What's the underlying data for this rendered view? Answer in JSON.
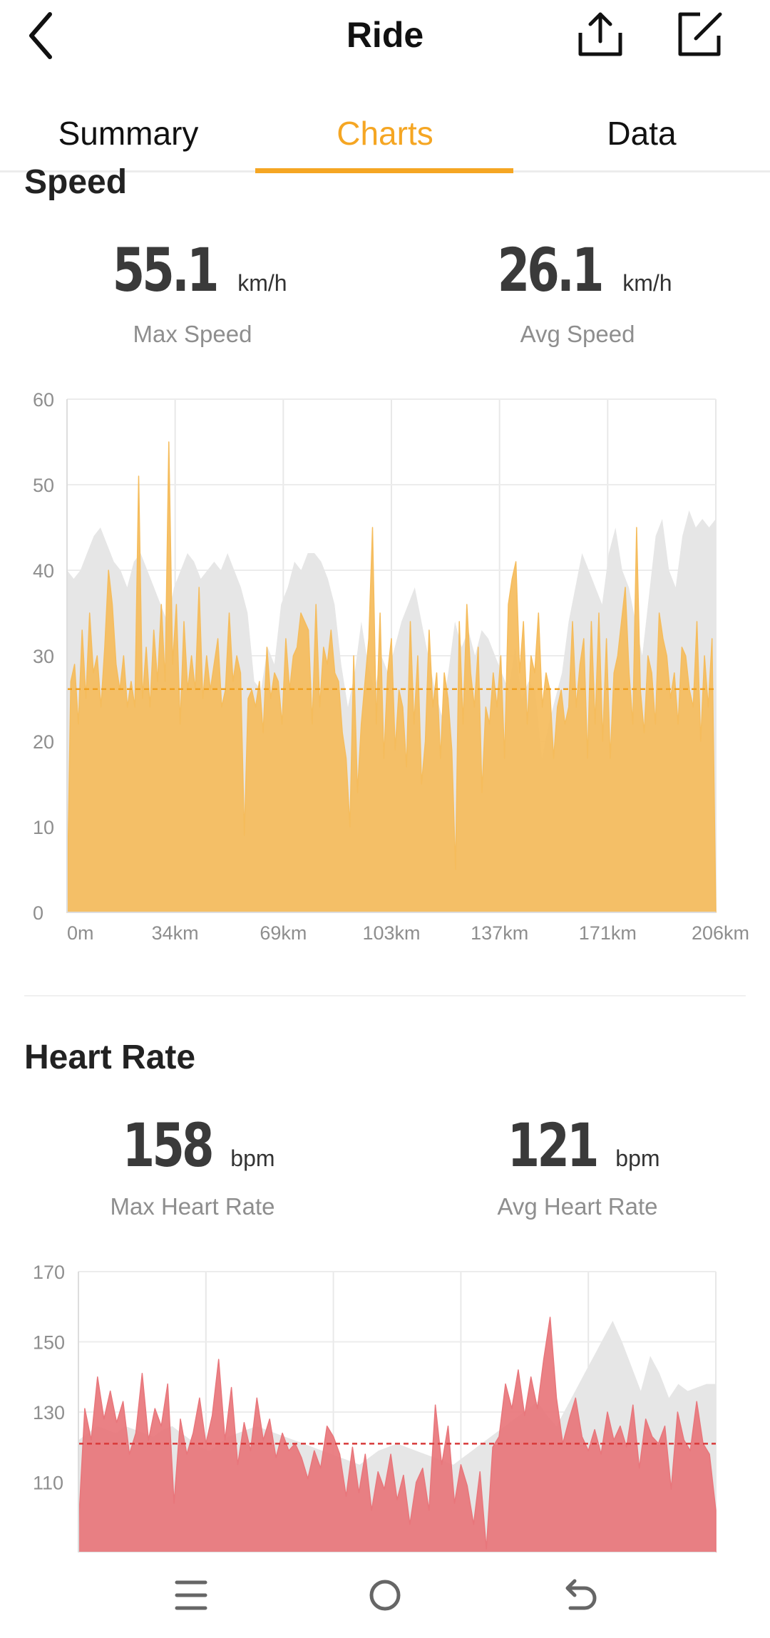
{
  "header": {
    "title": "Ride",
    "back_icon": "chevron-left-icon",
    "share_icon": "share-icon",
    "edit_icon": "edit-icon"
  },
  "tabs": [
    {
      "label": "Summary",
      "active": false
    },
    {
      "label": "Charts",
      "active": true
    },
    {
      "label": "Data",
      "active": false
    }
  ],
  "colors": {
    "accent": "#f5a623",
    "speed_fill": "#f5bc5c",
    "heart_fill": "#e8767b",
    "gray_fill": "#e6e6e6"
  },
  "speed": {
    "title": "Speed",
    "max_value": "55.1",
    "max_unit": "km/h",
    "max_label": "Max Speed",
    "avg_value": "26.1",
    "avg_unit": "km/h",
    "avg_label": "Avg Speed"
  },
  "heart_rate": {
    "title": "Heart Rate",
    "max_value": "158",
    "max_unit": "bpm",
    "max_label": "Max Heart Rate",
    "avg_value": "121",
    "avg_unit": "bpm",
    "avg_label": "Avg Heart Rate"
  },
  "chart_data": [
    {
      "type": "area",
      "ylim": [
        0,
        60
      ],
      "y_ticks": [
        "0",
        "10",
        "20",
        "30",
        "40",
        "50",
        "60"
      ],
      "x_ticks": [
        "0m",
        "34km",
        "69km",
        "103km",
        "137km",
        "171km",
        "206km"
      ],
      "xlim_km": [
        0,
        206
      ],
      "avg_line": 26.1,
      "grid": true,
      "series": [
        {
          "values": [
            0,
            27,
            29,
            22,
            33,
            25,
            35,
            28,
            30,
            24,
            31,
            40,
            36,
            29,
            26,
            30,
            24,
            27,
            24,
            51,
            25,
            31,
            24,
            33,
            27,
            36,
            27,
            55,
            29,
            36,
            22,
            34,
            26,
            30,
            26,
            38,
            25,
            30,
            26,
            29,
            32,
            24,
            26,
            35,
            27,
            30,
            28,
            9,
            25,
            26,
            24,
            27,
            21,
            31,
            25,
            28,
            27,
            22,
            32,
            26,
            30,
            31,
            35,
            34,
            33,
            22,
            36,
            24,
            31,
            29,
            33,
            28,
            27,
            21,
            18,
            10,
            30,
            14,
            22,
            27,
            32,
            45,
            22,
            35,
            18,
            28,
            32,
            19,
            26,
            24,
            17,
            34,
            22,
            30,
            15,
            20,
            33,
            24,
            28,
            18,
            28,
            25,
            19,
            5,
            34,
            22,
            36,
            28,
            24,
            31,
            14,
            24,
            22,
            28,
            24,
            30,
            18,
            36,
            39,
            41,
            28,
            34,
            22,
            30,
            28,
            35,
            24,
            28,
            26,
            18,
            24,
            26,
            22,
            24,
            34,
            24,
            29,
            32,
            18,
            34,
            22,
            35,
            20,
            32,
            18,
            28,
            30,
            34,
            38,
            28,
            22,
            45,
            26,
            21,
            30,
            28,
            22,
            35,
            32,
            30,
            25,
            28,
            22,
            31,
            30,
            26,
            24,
            34,
            20,
            30,
            24,
            32,
            0
          ]
        },
        {
          "values": [
            40,
            39,
            40,
            42,
            44,
            45,
            43,
            41,
            40,
            38,
            41,
            42,
            40,
            38,
            36,
            34,
            38,
            40,
            42,
            41,
            39,
            40,
            41,
            40,
            42,
            40,
            38,
            35,
            27,
            26,
            31,
            29,
            36,
            38,
            41,
            40,
            42,
            42,
            41,
            39,
            36,
            29,
            24,
            28,
            34,
            29,
            26,
            30,
            28,
            31,
            34,
            36,
            38,
            34,
            30,
            26,
            23,
            28,
            34,
            31,
            33,
            30,
            33,
            32,
            30,
            28,
            26,
            31,
            25,
            27,
            26,
            18,
            22,
            25,
            28,
            34,
            38,
            42,
            40,
            38,
            36,
            42,
            45,
            40,
            38,
            34,
            30,
            37,
            44,
            46,
            40,
            38,
            44,
            47,
            45,
            46,
            45,
            46
          ]
        }
      ]
    },
    {
      "type": "area",
      "ylim": [
        90,
        170
      ],
      "y_ticks": [
        "110",
        "130",
        "150",
        "170"
      ],
      "avg_line": 121,
      "grid": true,
      "series": [
        {
          "values": [
            97,
            131,
            122,
            140,
            128,
            136,
            127,
            133,
            118,
            124,
            141,
            122,
            131,
            126,
            138,
            104,
            128,
            118,
            124,
            134,
            121,
            129,
            145,
            122,
            137,
            115,
            127,
            119,
            134,
            122,
            128,
            117,
            124,
            119,
            121,
            117,
            111,
            119,
            114,
            126,
            123,
            118,
            106,
            120,
            107,
            118,
            102,
            113,
            108,
            118,
            105,
            112,
            98,
            110,
            114,
            102,
            132,
            115,
            126,
            104,
            115,
            109,
            98,
            113,
            91,
            120,
            123,
            138,
            131,
            142,
            129,
            140,
            131,
            145,
            157,
            134,
            121,
            128,
            134,
            123,
            119,
            125,
            118,
            130,
            122,
            126,
            120,
            132,
            114,
            128,
            123,
            121,
            126,
            108,
            130,
            122,
            119,
            133,
            121,
            118,
            102
          ]
        },
        {
          "values": [
            122,
            124,
            126,
            125,
            124,
            126,
            125,
            124,
            123,
            125,
            126,
            124,
            122,
            120,
            119,
            121,
            123,
            124,
            125,
            126,
            125,
            124,
            123,
            122,
            121,
            120,
            119,
            118,
            117,
            116,
            115,
            117,
            119,
            120,
            121,
            120,
            119,
            118,
            117,
            116,
            115,
            117,
            119,
            121,
            123,
            125,
            127,
            129,
            131,
            133,
            129,
            126,
            131,
            136,
            141,
            146,
            151,
            156,
            150,
            143,
            136,
            146,
            141,
            134,
            138,
            136,
            137,
            138,
            138
          ]
        }
      ]
    }
  ]
}
